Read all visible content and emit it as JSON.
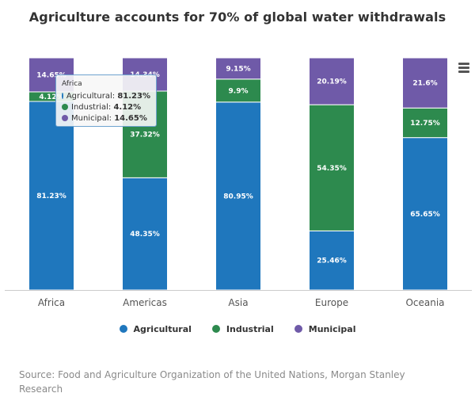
{
  "chart_data": {
    "type": "bar",
    "stacked": true,
    "title": "Agriculture accounts for 70% of global water withdrawals",
    "categories": [
      "Africa",
      "Americas",
      "Asia",
      "Europe",
      "Oceania"
    ],
    "series": [
      {
        "name": "Agricultural",
        "color": "#1f77bd",
        "values": [
          81.23,
          48.35,
          80.95,
          25.46,
          65.65
        ],
        "labels": [
          "81.23%",
          "48.35%",
          "80.95%",
          "25.46%",
          "65.65%"
        ]
      },
      {
        "name": "Industrial",
        "color": "#2d8a4e",
        "values": [
          4.12,
          37.32,
          9.9,
          54.35,
          12.75
        ],
        "labels": [
          "4.12%",
          "37.32%",
          "9.9%",
          "54.35%",
          "12.75%"
        ]
      },
      {
        "name": "Municipal",
        "color": "#6f5aa8",
        "values": [
          14.65,
          14.34,
          9.15,
          20.19,
          21.6
        ],
        "labels": [
          "14.65%",
          "14.34%",
          "9.15%",
          "20.19%",
          "21.6%"
        ]
      }
    ],
    "ylim": [
      0,
      100
    ],
    "grid": false,
    "legend_position": "bottom",
    "tooltip": {
      "category": "Africa",
      "rows": [
        {
          "name": "Agricultural",
          "value": "81.23%",
          "color": "#1f77bd"
        },
        {
          "name": "Industrial",
          "value": "4.12%",
          "color": "#2d8a4e"
        },
        {
          "name": "Municipal",
          "value": "14.65%",
          "color": "#6f5aa8"
        }
      ]
    }
  },
  "menu": {
    "icon": "hamburger-menu-icon"
  },
  "source": "Source: Food and Agriculture Organization of the United Nations, Morgan Stanley Research"
}
